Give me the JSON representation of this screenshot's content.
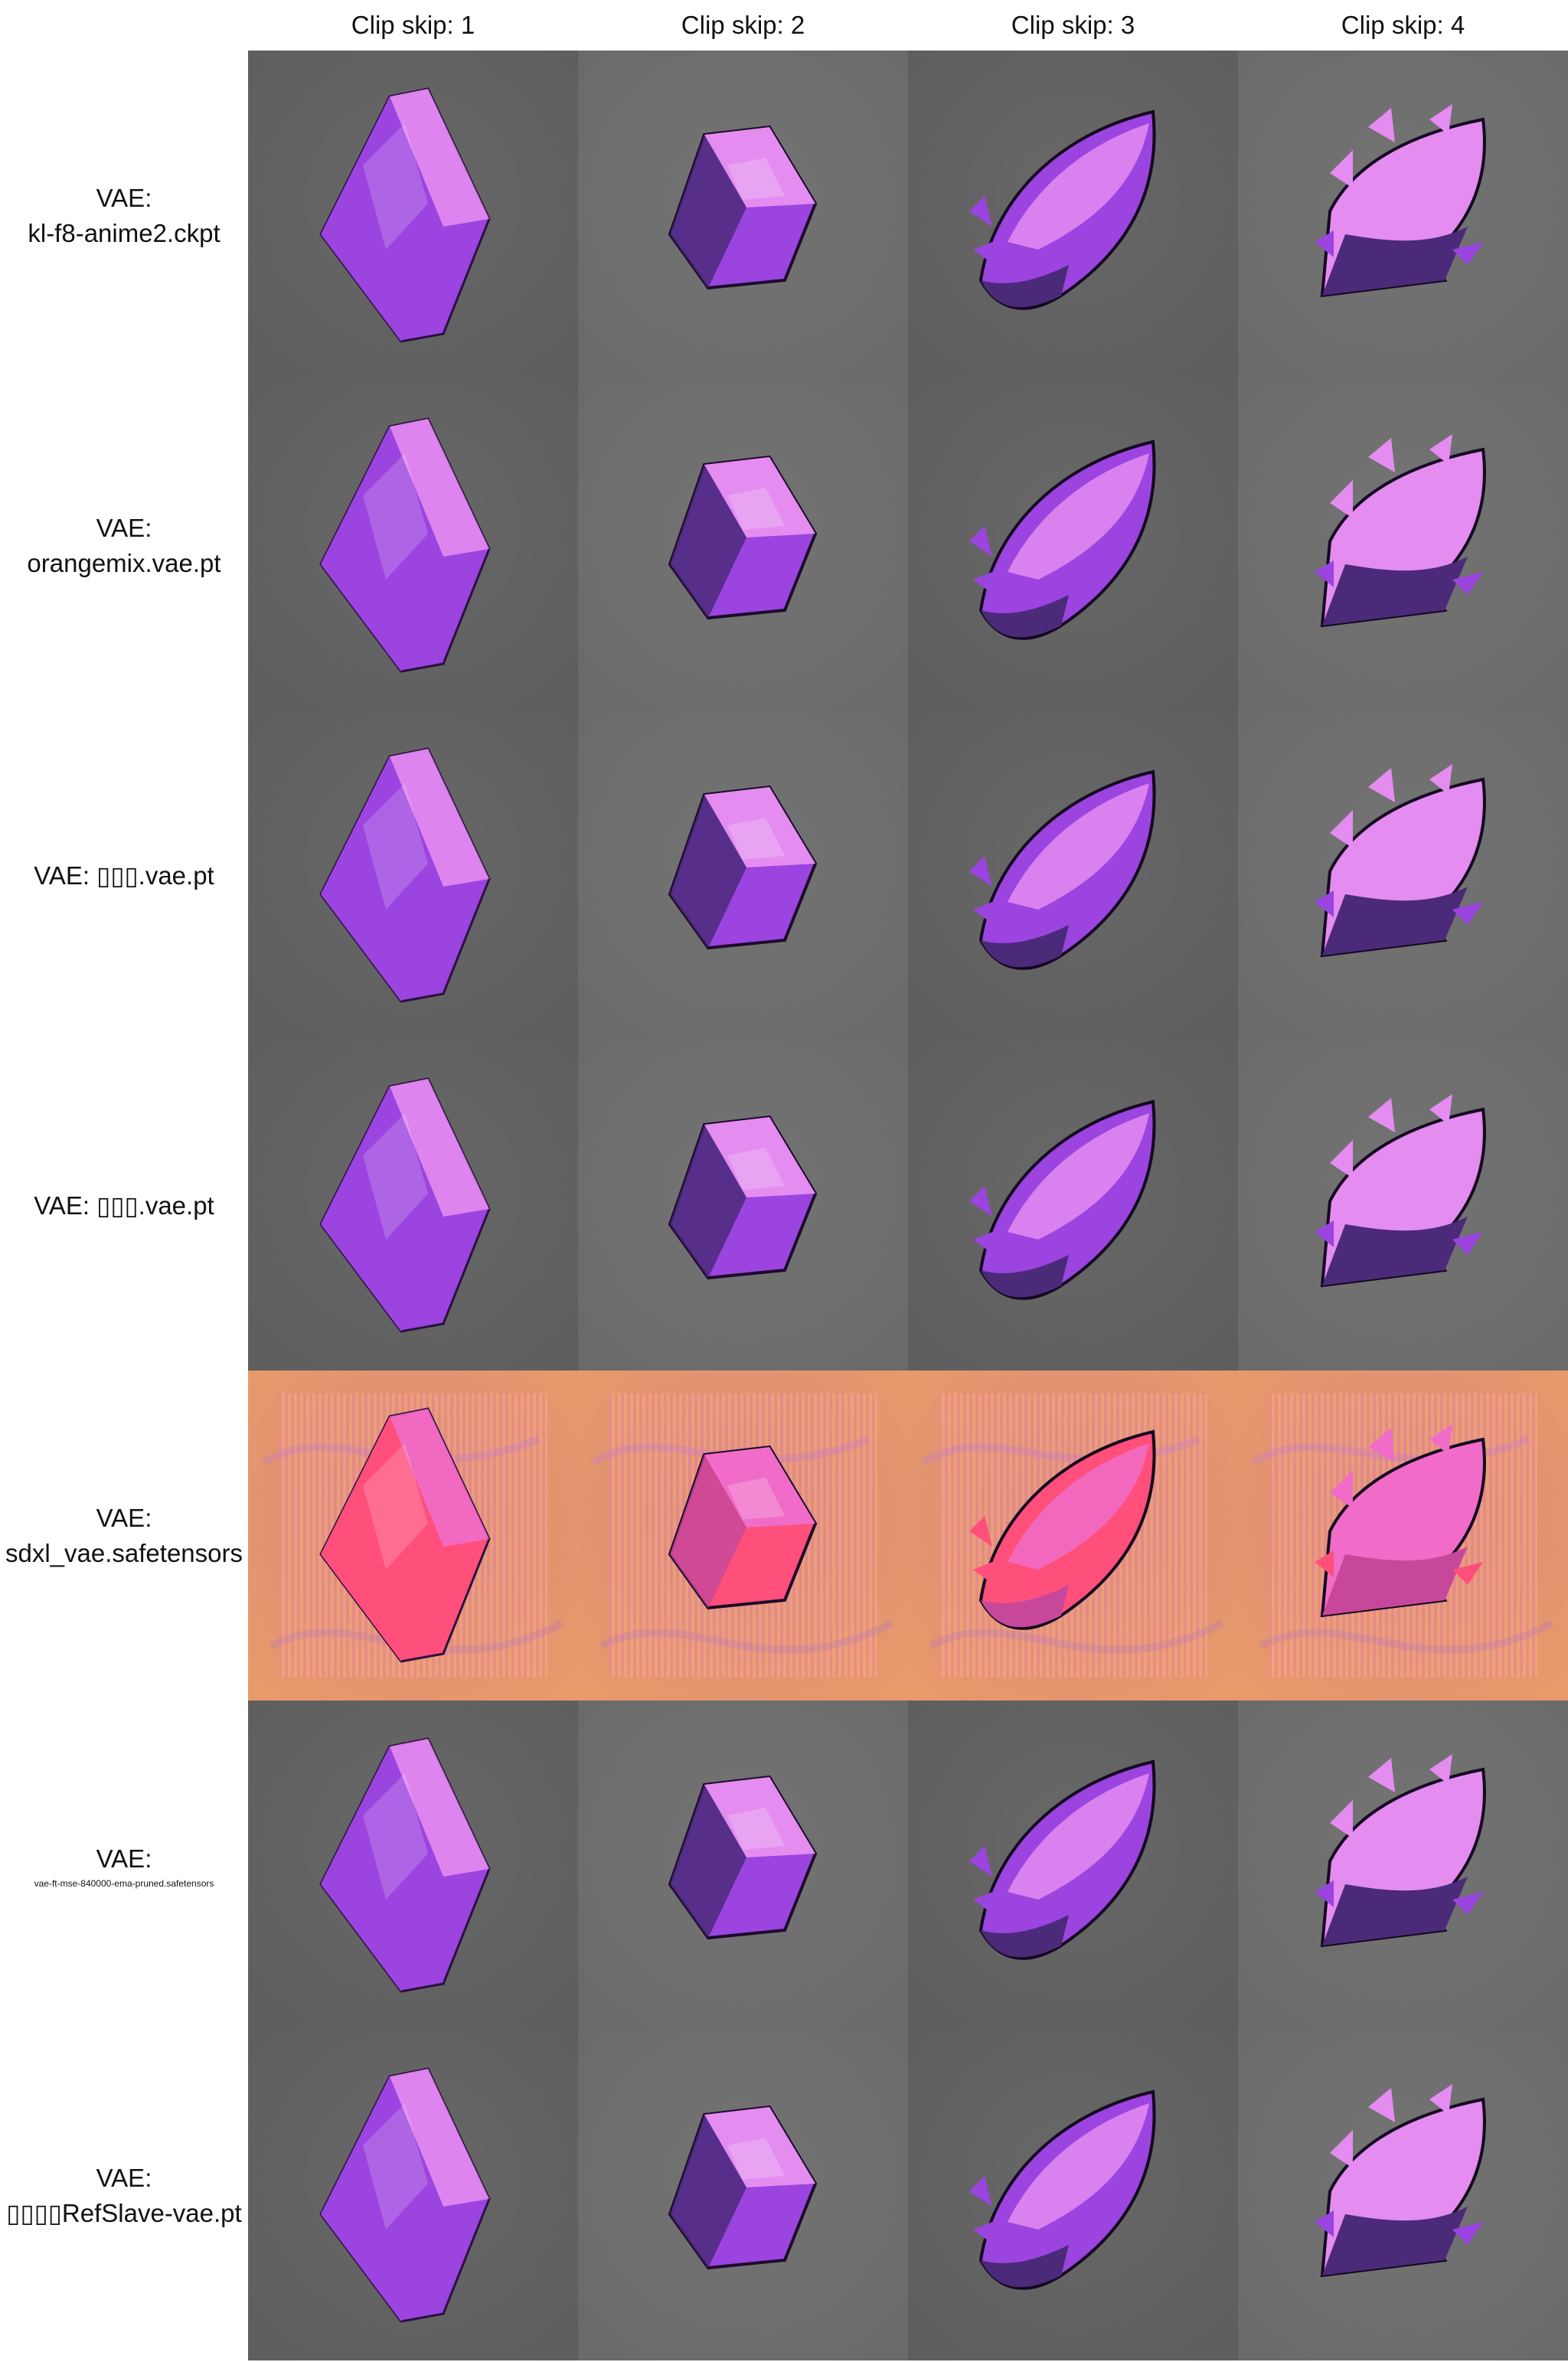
{
  "column_labels": [
    "Clip skip: 1",
    "Clip skip: 2",
    "Clip skip: 3",
    "Clip skip: 4"
  ],
  "rows": [
    {
      "line1": "VAE:",
      "line2": "kl-f8-anime2.ckpt",
      "line2_small": false,
      "style": "normal"
    },
    {
      "line1": "VAE:",
      "line2": "orangemix.vae.pt",
      "line2_small": false,
      "style": "normal"
    },
    {
      "line1": "VAE: ▯▯▯.vae.pt",
      "line2": "",
      "line2_small": false,
      "style": "normal"
    },
    {
      "line1": "VAE: ▯▯▯.vae.pt",
      "line2": "",
      "line2_small": false,
      "style": "normal"
    },
    {
      "line1": "VAE:",
      "line2": "sdxl_vae.safetensors",
      "line2_small": false,
      "style": "corrupted"
    },
    {
      "line1": "VAE:",
      "line2": "vae-ft-mse-840000-ema-pruned.safetensors",
      "line2_small": true,
      "style": "normal"
    },
    {
      "line1": "VAE:",
      "line2": "▯▯▯▯RefSlave-vae.pt",
      "line2_small": false,
      "style": "normal"
    }
  ],
  "colors": {
    "cell_gray_dark": "#5e5e5e",
    "cell_gray_light": "#6a6a6a",
    "crystal_purple": "#9b44e0",
    "crystal_pink": "#e48cf0",
    "corrupted_orange": "#e89a6a",
    "corrupted_pink": "#f06cc8"
  }
}
